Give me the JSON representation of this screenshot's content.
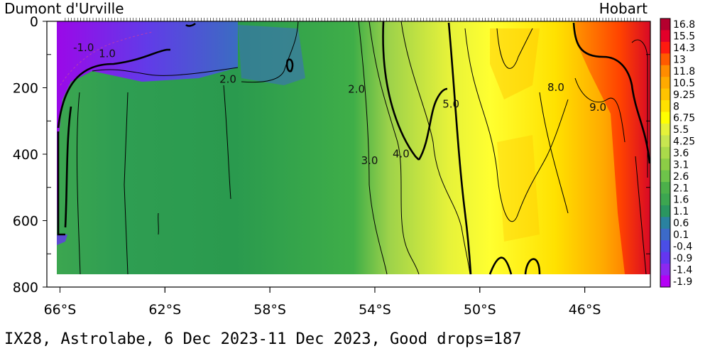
{
  "chart_data": {
    "type": "heatmap",
    "title": "IX28, Astrolabe,  6 Dec 2023-11 Dec 2023, Good drops=187",
    "left_station": "Dumont d'Urville",
    "right_station": "Hobart",
    "x_ticks": [
      "66°S",
      "62°S",
      "58°S",
      "54°S",
      "50°S",
      "46°S"
    ],
    "y_ticks": [
      "0",
      "200",
      "400",
      "600",
      "800"
    ],
    "xlim": [
      66.5,
      43.5
    ],
    "ylim": [
      0,
      800
    ],
    "colorbar_labels": [
      "16.8",
      "15.5",
      "14.3",
      "13",
      "11.8",
      "10.5",
      "9.25",
      "8",
      "6.75",
      "5.5",
      "4.25",
      "3.6",
      "3.1",
      "2.6",
      "2.1",
      "1.6",
      "1.1",
      "0.6",
      "0.1",
      "-0.4",
      "-0.9",
      "-1.4",
      "-1.9"
    ],
    "colorbar_colors": [
      "#b4002e",
      "#e3002a",
      "#ff1a10",
      "#ff5a00",
      "#ff8c00",
      "#ffaa00",
      "#ffc400",
      "#ffe100",
      "#ffff00",
      "#e6f23a",
      "#c8e650",
      "#aada4a",
      "#8ccd46",
      "#6ec44a",
      "#4cb04a",
      "#3ca650",
      "#2a9660",
      "#2a82a0",
      "#3c6ac8",
      "#4a4ee6",
      "#6436f0",
      "#8c28f0",
      "#b400f5"
    ],
    "contour_labels": [
      {
        "text": "-1.0",
        "lat": 65.1,
        "depth": 90
      },
      {
        "text": "1.0",
        "lat": 64.2,
        "depth": 108
      },
      {
        "text": "2.0",
        "lat": 59.6,
        "depth": 185
      },
      {
        "text": "2.0",
        "lat": 54.7,
        "depth": 215
      },
      {
        "text": "3.0",
        "lat": 54.2,
        "depth": 430
      },
      {
        "text": "4.0",
        "lat": 53.0,
        "depth": 410
      },
      {
        "text": "5.0",
        "lat": 51.1,
        "depth": 260
      },
      {
        "text": "8.0",
        "lat": 47.1,
        "depth": 210
      },
      {
        "text": "9.0",
        "lat": 45.5,
        "depth": 270
      }
    ]
  }
}
